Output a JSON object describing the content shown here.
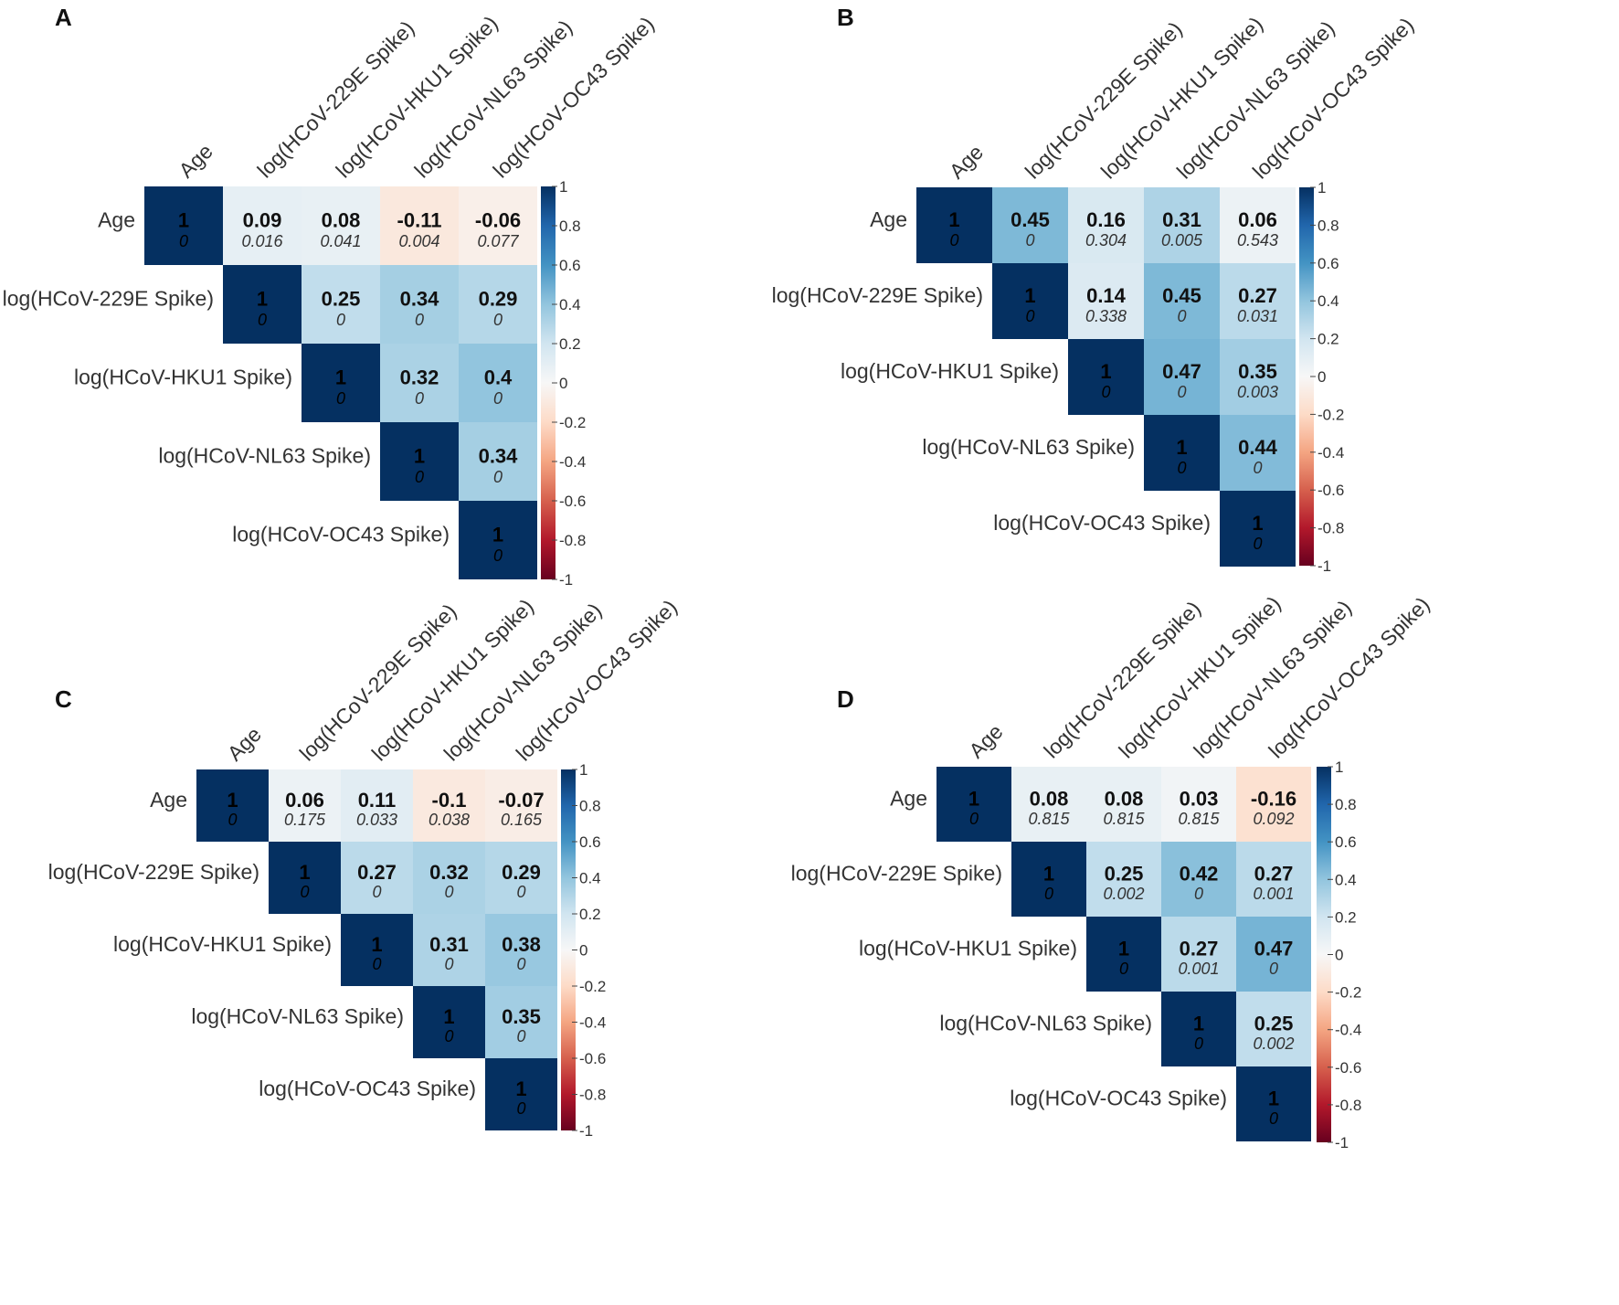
{
  "figure": {
    "variables": [
      "Age",
      "log(HCoV-229E Spike)",
      "log(HCoV-HKU1 Spike)",
      "log(HCoV-NL63 Spike)",
      "log(HCoV-OC43 Spike)"
    ],
    "colorbar_ticks": [
      "1",
      "0.8",
      "0.6",
      "0.4",
      "0.2",
      "0",
      "-0.2",
      "-0.4",
      "-0.6",
      "-0.8",
      "-1"
    ],
    "colors": {
      "positive": "#053061",
      "neutral": "#f7f7f7",
      "negative": "#67001f",
      "diag": "#1a3e6e"
    }
  },
  "chart_data": [
    {
      "type": "heatmap",
      "panel": "A",
      "variables": [
        "Age",
        "log(HCoV-229E Spike)",
        "log(HCoV-HKU1 Spike)",
        "log(HCoV-NL63 Spike)",
        "log(HCoV-OC43 Spike)"
      ],
      "cells": [
        {
          "row": 0,
          "col": 0,
          "r": 1,
          "r_label": "1",
          "p": "0"
        },
        {
          "row": 0,
          "col": 1,
          "r": 0.09,
          "r_label": "0.09",
          "p": "0.016"
        },
        {
          "row": 0,
          "col": 2,
          "r": 0.08,
          "r_label": "0.08",
          "p": "0.041"
        },
        {
          "row": 0,
          "col": 3,
          "r": -0.11,
          "r_label": "-0.11",
          "p": "0.004"
        },
        {
          "row": 0,
          "col": 4,
          "r": -0.06,
          "r_label": "-0.06",
          "p": "0.077"
        },
        {
          "row": 1,
          "col": 1,
          "r": 1,
          "r_label": "1",
          "p": "0"
        },
        {
          "row": 1,
          "col": 2,
          "r": 0.25,
          "r_label": "0.25",
          "p": "0"
        },
        {
          "row": 1,
          "col": 3,
          "r": 0.34,
          "r_label": "0.34",
          "p": "0"
        },
        {
          "row": 1,
          "col": 4,
          "r": 0.29,
          "r_label": "0.29",
          "p": "0"
        },
        {
          "row": 2,
          "col": 2,
          "r": 1,
          "r_label": "1",
          "p": "0"
        },
        {
          "row": 2,
          "col": 3,
          "r": 0.32,
          "r_label": "0.32",
          "p": "0"
        },
        {
          "row": 2,
          "col": 4,
          "r": 0.4,
          "r_label": "0.4",
          "p": "0"
        },
        {
          "row": 3,
          "col": 3,
          "r": 1,
          "r_label": "1",
          "p": "0"
        },
        {
          "row": 3,
          "col": 4,
          "r": 0.34,
          "r_label": "0.34",
          "p": "0"
        },
        {
          "row": 4,
          "col": 4,
          "r": 1,
          "r_label": "1",
          "p": "0"
        }
      ],
      "color_range": [
        -1,
        1
      ]
    },
    {
      "type": "heatmap",
      "panel": "B",
      "variables": [
        "Age",
        "log(HCoV-229E Spike)",
        "log(HCoV-HKU1 Spike)",
        "log(HCoV-NL63 Spike)",
        "log(HCoV-OC43 Spike)"
      ],
      "cells": [
        {
          "row": 0,
          "col": 0,
          "r": 1,
          "r_label": "1",
          "p": "0"
        },
        {
          "row": 0,
          "col": 1,
          "r": 0.45,
          "r_label": "0.45",
          "p": "0"
        },
        {
          "row": 0,
          "col": 2,
          "r": 0.16,
          "r_label": "0.16",
          "p": "0.304"
        },
        {
          "row": 0,
          "col": 3,
          "r": 0.31,
          "r_label": "0.31",
          "p": "0.005"
        },
        {
          "row": 0,
          "col": 4,
          "r": 0.06,
          "r_label": "0.06",
          "p": "0.543"
        },
        {
          "row": 1,
          "col": 1,
          "r": 1,
          "r_label": "1",
          "p": "0"
        },
        {
          "row": 1,
          "col": 2,
          "r": 0.14,
          "r_label": "0.14",
          "p": "0.338"
        },
        {
          "row": 1,
          "col": 3,
          "r": 0.45,
          "r_label": "0.45",
          "p": "0"
        },
        {
          "row": 1,
          "col": 4,
          "r": 0.27,
          "r_label": "0.27",
          "p": "0.031"
        },
        {
          "row": 2,
          "col": 2,
          "r": 1,
          "r_label": "1",
          "p": "0"
        },
        {
          "row": 2,
          "col": 3,
          "r": 0.47,
          "r_label": "0.47",
          "p": "0"
        },
        {
          "row": 2,
          "col": 4,
          "r": 0.35,
          "r_label": "0.35",
          "p": "0.003"
        },
        {
          "row": 3,
          "col": 3,
          "r": 1,
          "r_label": "1",
          "p": "0"
        },
        {
          "row": 3,
          "col": 4,
          "r": 0.44,
          "r_label": "0.44",
          "p": "0"
        },
        {
          "row": 4,
          "col": 4,
          "r": 1,
          "r_label": "1",
          "p": "0"
        }
      ],
      "color_range": [
        -1,
        1
      ]
    },
    {
      "type": "heatmap",
      "panel": "C",
      "variables": [
        "Age",
        "log(HCoV-229E Spike)",
        "log(HCoV-HKU1 Spike)",
        "log(HCoV-NL63 Spike)",
        "log(HCoV-OC43 Spike)"
      ],
      "cells": [
        {
          "row": 0,
          "col": 0,
          "r": 1,
          "r_label": "1",
          "p": "0"
        },
        {
          "row": 0,
          "col": 1,
          "r": 0.06,
          "r_label": "0.06",
          "p": "0.175"
        },
        {
          "row": 0,
          "col": 2,
          "r": 0.11,
          "r_label": "0.11",
          "p": "0.033"
        },
        {
          "row": 0,
          "col": 3,
          "r": -0.1,
          "r_label": "-0.1",
          "p": "0.038"
        },
        {
          "row": 0,
          "col": 4,
          "r": -0.07,
          "r_label": "-0.07",
          "p": "0.165"
        },
        {
          "row": 1,
          "col": 1,
          "r": 1,
          "r_label": "1",
          "p": "0"
        },
        {
          "row": 1,
          "col": 2,
          "r": 0.27,
          "r_label": "0.27",
          "p": "0"
        },
        {
          "row": 1,
          "col": 3,
          "r": 0.32,
          "r_label": "0.32",
          "p": "0"
        },
        {
          "row": 1,
          "col": 4,
          "r": 0.29,
          "r_label": "0.29",
          "p": "0"
        },
        {
          "row": 2,
          "col": 2,
          "r": 1,
          "r_label": "1",
          "p": "0"
        },
        {
          "row": 2,
          "col": 3,
          "r": 0.31,
          "r_label": "0.31",
          "p": "0"
        },
        {
          "row": 2,
          "col": 4,
          "r": 0.38,
          "r_label": "0.38",
          "p": "0"
        },
        {
          "row": 3,
          "col": 3,
          "r": 1,
          "r_label": "1",
          "p": "0"
        },
        {
          "row": 3,
          "col": 4,
          "r": 0.35,
          "r_label": "0.35",
          "p": "0"
        },
        {
          "row": 4,
          "col": 4,
          "r": 1,
          "r_label": "1",
          "p": "0"
        }
      ],
      "color_range": [
        -1,
        1
      ]
    },
    {
      "type": "heatmap",
      "panel": "D",
      "variables": [
        "Age",
        "log(HCoV-229E Spike)",
        "log(HCoV-HKU1 Spike)",
        "log(HCoV-NL63 Spike)",
        "log(HCoV-OC43 Spike)"
      ],
      "cells": [
        {
          "row": 0,
          "col": 0,
          "r": 1,
          "r_label": "1",
          "p": "0"
        },
        {
          "row": 0,
          "col": 1,
          "r": 0.08,
          "r_label": "0.08",
          "p": "0.815"
        },
        {
          "row": 0,
          "col": 2,
          "r": 0.08,
          "r_label": "0.08",
          "p": "0.815"
        },
        {
          "row": 0,
          "col": 3,
          "r": 0.03,
          "r_label": "0.03",
          "p": "0.815"
        },
        {
          "row": 0,
          "col": 4,
          "r": -0.16,
          "r_label": "-0.16",
          "p": "0.092"
        },
        {
          "row": 1,
          "col": 1,
          "r": 1,
          "r_label": "1",
          "p": "0"
        },
        {
          "row": 1,
          "col": 2,
          "r": 0.25,
          "r_label": "0.25",
          "p": "0.002"
        },
        {
          "row": 1,
          "col": 3,
          "r": 0.42,
          "r_label": "0.42",
          "p": "0"
        },
        {
          "row": 1,
          "col": 4,
          "r": 0.27,
          "r_label": "0.27",
          "p": "0.001"
        },
        {
          "row": 2,
          "col": 2,
          "r": 1,
          "r_label": "1",
          "p": "0"
        },
        {
          "row": 2,
          "col": 3,
          "r": 0.27,
          "r_label": "0.27",
          "p": "0.001"
        },
        {
          "row": 2,
          "col": 4,
          "r": 0.47,
          "r_label": "0.47",
          "p": "0"
        },
        {
          "row": 3,
          "col": 3,
          "r": 1,
          "r_label": "1",
          "p": "0"
        },
        {
          "row": 3,
          "col": 4,
          "r": 0.25,
          "r_label": "0.25",
          "p": "0.002"
        },
        {
          "row": 4,
          "col": 4,
          "r": 1,
          "r_label": "1",
          "p": "0"
        }
      ],
      "color_range": [
        -1,
        1
      ]
    }
  ]
}
